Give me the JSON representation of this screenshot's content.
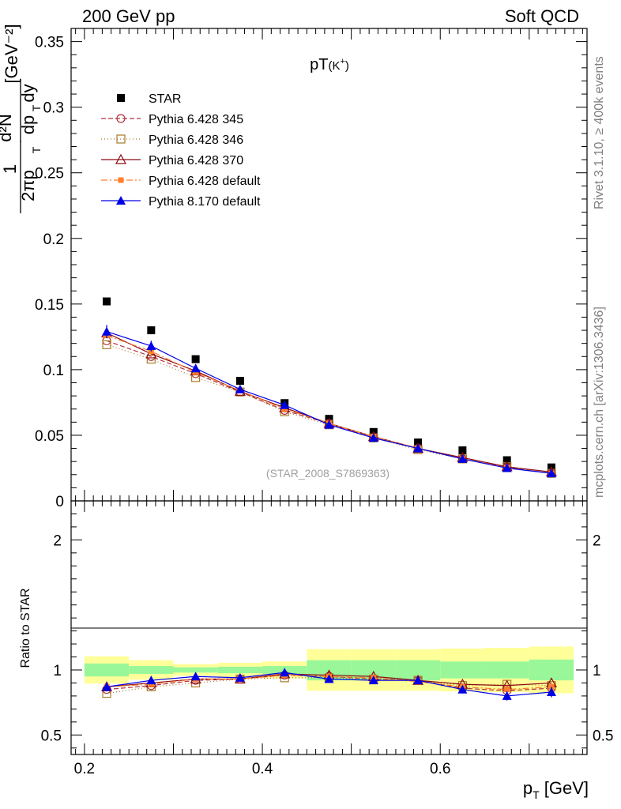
{
  "header": {
    "left": "200 GeV pp",
    "right": "Soft QCD"
  },
  "side_labels": {
    "rivet": "Rivet 3.1.10, ≥ 400k events",
    "mcplots": "mcplots.cern.ch [arXiv:1306.3436]"
  },
  "colors": {
    "band_inner": "#99f799",
    "band_outer": "#ffff99",
    "star": "#000000",
    "py345": "#b2333f",
    "py346": "#a87a26",
    "py370": "#8c0a14",
    "py6def": "#ff7f2a",
    "py8def": "#0000e6"
  },
  "chart_data": [
    {
      "type": "scatter",
      "panel": "main",
      "title": "pT(K⁺)",
      "ylabel": "1/2πp_T d²N/dp_T dy [GeV⁻²]",
      "analysis_label": "(STAR_2008_S7869363)",
      "xlim": [
        0.185,
        0.765
      ],
      "ylim": [
        0,
        0.36
      ],
      "yticks": [
        "0",
        "0.05",
        "0.1",
        "0.15",
        "0.2",
        "0.25",
        "0.3",
        "0.35"
      ],
      "legend_position": "top-left",
      "x": [
        0.225,
        0.275,
        0.325,
        0.375,
        0.425,
        0.475,
        0.525,
        0.575,
        0.625,
        0.675,
        0.725
      ],
      "series": [
        {
          "name": "STAR",
          "key": "star",
          "marker": "square-filled",
          "values": [
            0.152,
            0.13,
            0.108,
            0.0915,
            0.0745,
            0.0625,
            0.0525,
            0.0445,
            0.0385,
            0.031,
            0.0255
          ]
        },
        {
          "name": "Pythia 6.428 345",
          "key": "py345",
          "marker": "circle-open",
          "dash": "6,3",
          "values": [
            0.122,
            0.11,
            0.097,
            0.083,
            0.069,
            0.059,
            0.048,
            0.04,
            0.032,
            0.0255,
            0.021
          ]
        },
        {
          "name": "Pythia 6.428 346",
          "key": "py346",
          "marker": "square-open",
          "dash": "1,3",
          "values": [
            0.119,
            0.108,
            0.094,
            0.083,
            0.068,
            0.058,
            0.048,
            0.039,
            0.032,
            0.026,
            0.021
          ]
        },
        {
          "name": "Pythia 6.428 370",
          "key": "py370",
          "marker": "triangle-open",
          "dash": "",
          "values": [
            0.128,
            0.112,
            0.099,
            0.0835,
            0.071,
            0.059,
            0.049,
            0.04,
            0.033,
            0.026,
            0.022
          ]
        },
        {
          "name": "Pythia 6.428 default",
          "key": "py6def",
          "marker": "square-small",
          "dash": "8,3,2,3",
          "values": [
            0.126,
            0.114,
            0.098,
            0.084,
            0.07,
            0.059,
            0.049,
            0.04,
            0.032,
            0.025,
            0.021
          ]
        },
        {
          "name": "Pythia 8.170 default",
          "key": "py8def",
          "marker": "triangle-filled",
          "dash": "",
          "values": [
            0.129,
            0.118,
            0.101,
            0.085,
            0.073,
            0.058,
            0.048,
            0.04,
            0.032,
            0.025,
            0.021
          ],
          "errors": [
            0.005,
            0.004,
            0.003,
            0.002,
            0.002,
            0.0015,
            0.0012,
            0.001,
            0.001,
            0.001,
            0.001
          ]
        }
      ]
    },
    {
      "type": "scatter",
      "panel": "ratio",
      "ylabel": "Ratio to STAR",
      "xlabel": "p_T [GeV]",
      "xlim": [
        0.185,
        0.765
      ],
      "ylim": [
        0.35,
        2.3
      ],
      "xticks": [
        "0.2",
        "0.4",
        "0.6"
      ],
      "yticks": [
        "0.5",
        "1",
        "2"
      ],
      "bands": {
        "x_edges": [
          0.2,
          0.25,
          0.3,
          0.35,
          0.4,
          0.45,
          0.5,
          0.55,
          0.6,
          0.65,
          0.7,
          0.75
        ],
        "inner_low": [
          0.95,
          0.97,
          0.98,
          0.975,
          0.97,
          0.92,
          0.92,
          0.92,
          0.935,
          0.935,
          0.92
        ],
        "inner_high": [
          1.05,
          1.03,
          1.02,
          1.025,
          1.03,
          1.075,
          1.075,
          1.075,
          1.065,
          1.065,
          1.08
        ],
        "outer_low": [
          0.895,
          0.925,
          0.955,
          0.945,
          0.935,
          0.84,
          0.84,
          0.84,
          0.835,
          0.83,
          0.82
        ],
        "outer_high": [
          1.105,
          1.075,
          1.045,
          1.055,
          1.065,
          1.16,
          1.16,
          1.16,
          1.165,
          1.17,
          1.18
        ]
      },
      "x": [
        0.225,
        0.275,
        0.325,
        0.375,
        0.425,
        0.475,
        0.525,
        0.575,
        0.625,
        0.675,
        0.725
      ],
      "series": [
        {
          "key": "py345",
          "values": [
            0.85,
            0.88,
            0.92,
            0.93,
            0.96,
            0.95,
            0.93,
            0.92,
            0.86,
            0.84,
            0.86
          ]
        },
        {
          "key": "py346",
          "values": [
            0.82,
            0.87,
            0.9,
            0.93,
            0.94,
            0.94,
            0.93,
            0.92,
            0.88,
            0.89,
            0.88
          ]
        },
        {
          "key": "py370",
          "values": [
            0.87,
            0.9,
            0.93,
            0.93,
            0.97,
            0.96,
            0.95,
            0.92,
            0.89,
            0.88,
            0.9
          ]
        },
        {
          "key": "py6def",
          "values": [
            0.87,
            0.89,
            0.93,
            0.93,
            0.96,
            0.95,
            0.94,
            0.91,
            0.87,
            0.85,
            0.87
          ]
        },
        {
          "key": "py8def",
          "values": [
            0.87,
            0.92,
            0.95,
            0.94,
            0.98,
            0.93,
            0.92,
            0.92,
            0.85,
            0.8,
            0.83
          ],
          "errors": [
            0.035,
            0.03,
            0.025,
            0.025,
            0.03,
            0.025,
            0.025,
            0.025,
            0.03,
            0.035,
            0.04
          ]
        }
      ]
    }
  ]
}
